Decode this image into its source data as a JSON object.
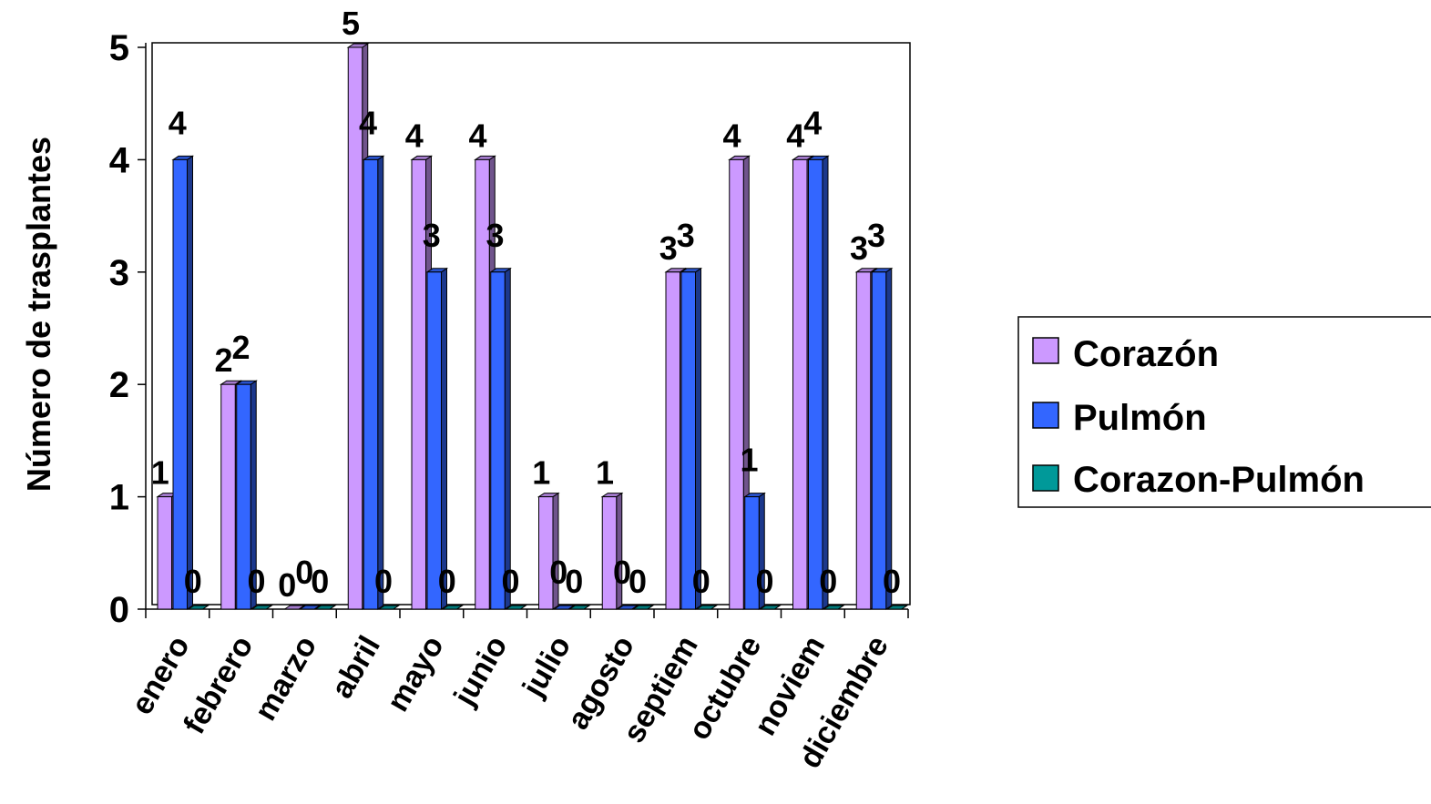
{
  "chart_data": {
    "type": "bar",
    "title": "",
    "xlabel": "",
    "ylabel": "Número de trasplantes",
    "ylim": [
      0,
      5
    ],
    "yticks": [
      0,
      1,
      2,
      3,
      4,
      5
    ],
    "grid": false,
    "legend_position": "right",
    "categories": [
      "enero",
      "febrero",
      "marzo",
      "abril",
      "mayo",
      "junio",
      "julio",
      "agosto",
      "septiem",
      "octubre",
      "noviem",
      "diciembre"
    ],
    "series": [
      {
        "name": "Corazón",
        "color": "#cc99ff",
        "values": [
          1,
          2,
          0,
          5,
          4,
          4,
          1,
          1,
          3,
          4,
          4,
          3
        ]
      },
      {
        "name": "Pulmón",
        "color": "#3366ff",
        "values": [
          4,
          2,
          0,
          4,
          3,
          3,
          0,
          0,
          3,
          1,
          4,
          3
        ]
      },
      {
        "name": "Corazon-Pulmón",
        "color": "#009999",
        "values": [
          0,
          0,
          0,
          0,
          0,
          0,
          0,
          0,
          0,
          0,
          0,
          0
        ]
      }
    ]
  }
}
